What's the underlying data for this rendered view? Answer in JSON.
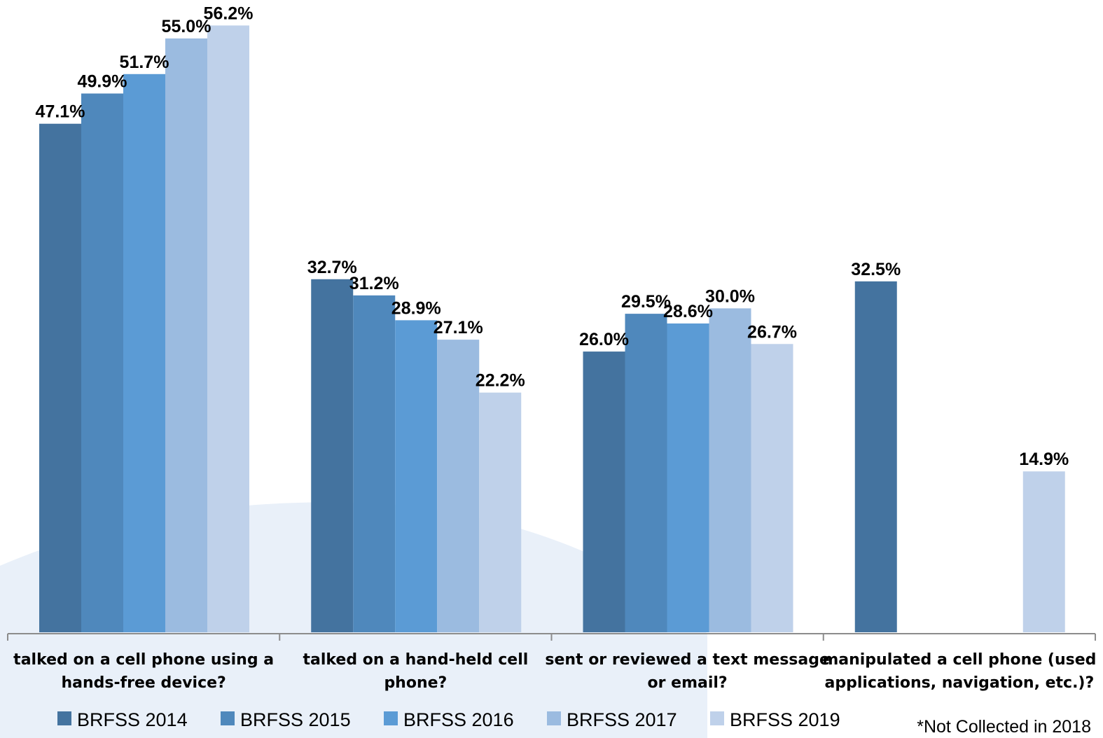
{
  "chart_data": {
    "type": "bar",
    "title": "",
    "xlabel": "",
    "ylabel": "",
    "ylim": [
      0,
      60
    ],
    "grid": false,
    "legend_position": "bottom",
    "categories": [
      [
        "talked on a cell phone using a",
        "hands-free device?"
      ],
      [
        "talked on a hand-held cell",
        "phone?"
      ],
      [
        "sent or reviewed a text message",
        "or email?"
      ],
      [
        "manipulated a cell phone (used",
        "applications, navigation, etc.)?"
      ]
    ],
    "series": [
      {
        "name": "BRFSS 2014",
        "color": "#44739f",
        "values": [
          47.1,
          32.7,
          26.0,
          32.5
        ]
      },
      {
        "name": "BRFSS 2015",
        "color": "#4f88bc",
        "values": [
          49.9,
          31.2,
          29.5,
          null
        ]
      },
      {
        "name": "BRFSS 2016",
        "color": "#5b9bd5",
        "values": [
          51.7,
          28.9,
          28.6,
          null
        ]
      },
      {
        "name": "BRFSS 2017",
        "color": "#9bbbe0",
        "values": [
          55.0,
          27.1,
          30.0,
          null
        ]
      },
      {
        "name": "BRFSS 2019",
        "color": "#bfd1ea",
        "values": [
          56.2,
          22.2,
          26.7,
          14.9
        ]
      }
    ],
    "data_labels": [
      [
        "47.1%",
        "32.7%",
        "26.0%",
        "32.5%"
      ],
      [
        "49.9%",
        "31.2%",
        "29.5%",
        null
      ],
      [
        "51.7%",
        "28.9%",
        "28.6%",
        null
      ],
      [
        "55.0%",
        "27.1%",
        "30.0%",
        null
      ],
      [
        "56.2%",
        "22.2%",
        "26.7%",
        "14.9%"
      ]
    ],
    "footnote": "*Not Collected in 2018"
  }
}
